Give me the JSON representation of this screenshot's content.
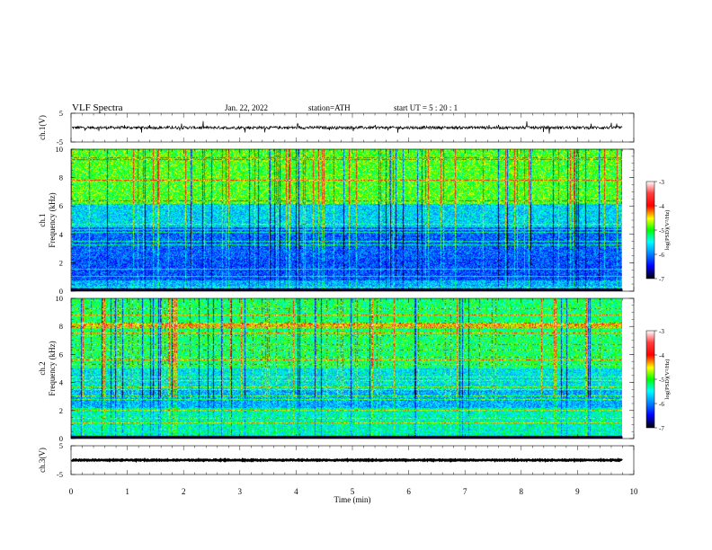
{
  "header": {
    "title": "VLF  Spectra",
    "date": "Jan. 22, 2022",
    "station": "station=ATH",
    "start": "start  UT  =    5  : 20 : 1"
  },
  "chart_data": [
    {
      "type": "line",
      "panel": "ch1-waveform",
      "ylabel": "ch.1(V)",
      "ylim": [
        -5,
        5
      ],
      "yticks": [
        "5",
        "-5"
      ],
      "xlim": [
        0,
        10
      ],
      "data_extent_min": 9.8,
      "baseline": 0,
      "amplitude": 1
    },
    {
      "type": "heatmap",
      "panel": "ch1-spectrogram",
      "ylabel": "ch.1\nFrequency  (kHz)",
      "ylim": [
        0,
        10
      ],
      "yticks": [
        "0",
        "2",
        "4",
        "6",
        "8",
        "10"
      ],
      "xlim": [
        0,
        10
      ],
      "colorbar": {
        "label": "log(PSD)(V²/Hz)",
        "range": [
          -7,
          -3
        ],
        "ticks": [
          "-3",
          "-4",
          "-5",
          "-6",
          "-7"
        ]
      }
    },
    {
      "type": "heatmap",
      "panel": "ch2-spectrogram",
      "ylabel": "ch.2\nFrequency  (kHz)",
      "ylim": [
        0,
        10
      ],
      "yticks": [
        "0",
        "2",
        "4",
        "6",
        "8",
        "10"
      ],
      "xlim": [
        0,
        10
      ],
      "colorbar": {
        "label": "log(PSD)(V²/Hz)",
        "range": [
          -7,
          -3
        ],
        "ticks": [
          "-3",
          "-4",
          "-5",
          "-6",
          "-7"
        ]
      }
    },
    {
      "type": "line",
      "panel": "ch3-waveform",
      "ylabel": "ch.3(V)",
      "ylim": [
        -5,
        5
      ],
      "yticks": [
        "5",
        "-5"
      ],
      "xlim": [
        0,
        10
      ],
      "data_extent_min": 9.8,
      "baseline": 0,
      "amplitude": 0.3
    }
  ],
  "x_axis": {
    "label": "Time  (min)",
    "ticks": [
      "0",
      "1",
      "2",
      "3",
      "4",
      "5",
      "6",
      "7",
      "8",
      "9",
      "10"
    ]
  }
}
